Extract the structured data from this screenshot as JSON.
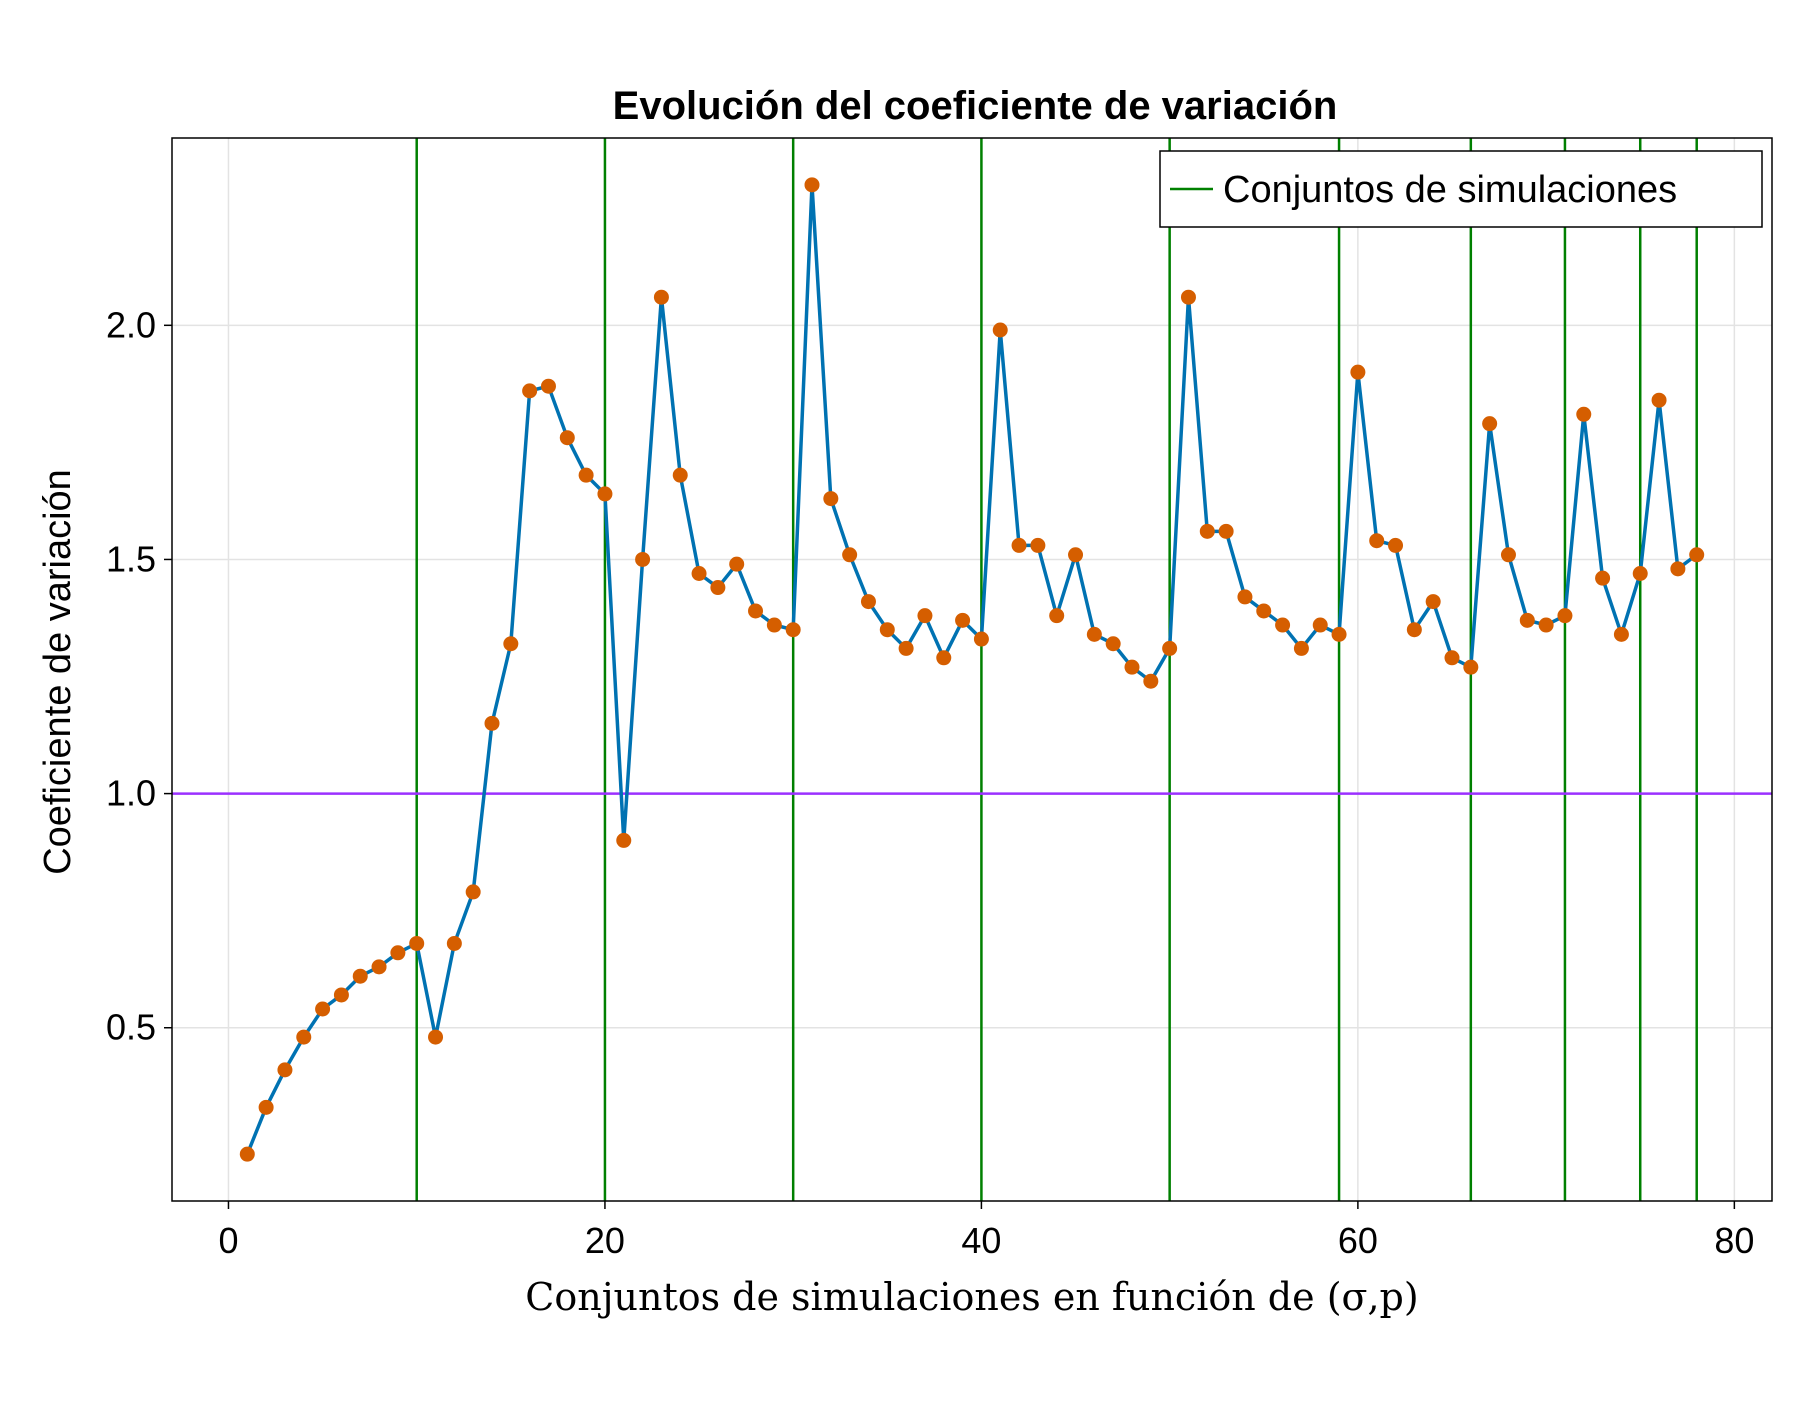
{
  "chart_data": {
    "type": "line",
    "title": "Evolución del coeficiente de variación",
    "xlabel": "Conjuntos de simulaciones en función de (σ,p)",
    "ylabel": "Coeficiente de variación",
    "xlim": [
      -3,
      82
    ],
    "ylim": [
      0.13,
      2.4
    ],
    "xticks": [
      0,
      20,
      40,
      60,
      80
    ],
    "xtick_labels": [
      "0",
      "20",
      "40",
      "60",
      "80"
    ],
    "yticks": [
      0.5,
      1.0,
      1.5,
      2.0
    ],
    "ytick_labels": [
      "0.5",
      "1.0",
      "1.5",
      "2.0"
    ],
    "grid": true,
    "legend_position": "top-right",
    "series": [
      {
        "color": "#0072b2",
        "marker_color": "#d55e00",
        "x": [
          1,
          2,
          3,
          4,
          5,
          6,
          7,
          8,
          9,
          10,
          11,
          12,
          13,
          14,
          15,
          16,
          17,
          18,
          19,
          20,
          21,
          22,
          23,
          24,
          25,
          26,
          27,
          28,
          29,
          30,
          31,
          32,
          33,
          34,
          35,
          36,
          37,
          38,
          39,
          40,
          41,
          42,
          43,
          44,
          45,
          46,
          47,
          48,
          49,
          50,
          51,
          52,
          53,
          54,
          55,
          56,
          57,
          58,
          59,
          60,
          61,
          62,
          63,
          64,
          65,
          66,
          67,
          68,
          69,
          70,
          71,
          72,
          73,
          74,
          75,
          76,
          77,
          78
        ],
        "y": [
          0.23,
          0.33,
          0.41,
          0.48,
          0.54,
          0.57,
          0.61,
          0.63,
          0.66,
          0.68,
          0.48,
          0.68,
          0.79,
          1.15,
          1.32,
          1.86,
          1.87,
          1.76,
          1.68,
          1.64,
          0.9,
          1.5,
          2.06,
          1.68,
          1.47,
          1.44,
          1.49,
          1.39,
          1.36,
          1.35,
          2.3,
          1.63,
          1.51,
          1.41,
          1.35,
          1.31,
          1.38,
          1.29,
          1.37,
          1.33,
          1.99,
          1.53,
          1.53,
          1.38,
          1.51,
          1.34,
          1.32,
          1.27,
          1.24,
          1.31,
          2.06,
          1.56,
          1.56,
          1.42,
          1.39,
          1.36,
          1.31,
          1.36,
          1.34,
          1.9,
          1.54,
          1.53,
          1.35,
          1.41,
          1.29,
          1.27,
          1.79,
          1.51,
          1.37,
          1.36,
          1.38,
          1.81,
          1.46,
          1.34,
          1.47,
          1.84,
          1.48,
          1.51
        ]
      }
    ],
    "vlines": {
      "name": "Conjuntos de simulaciones",
      "color": "#008000",
      "x": [
        10,
        20,
        30,
        40,
        50,
        59,
        66,
        71,
        75,
        78
      ]
    },
    "hline": {
      "y": 1.0,
      "color": "#9b30ff"
    }
  }
}
